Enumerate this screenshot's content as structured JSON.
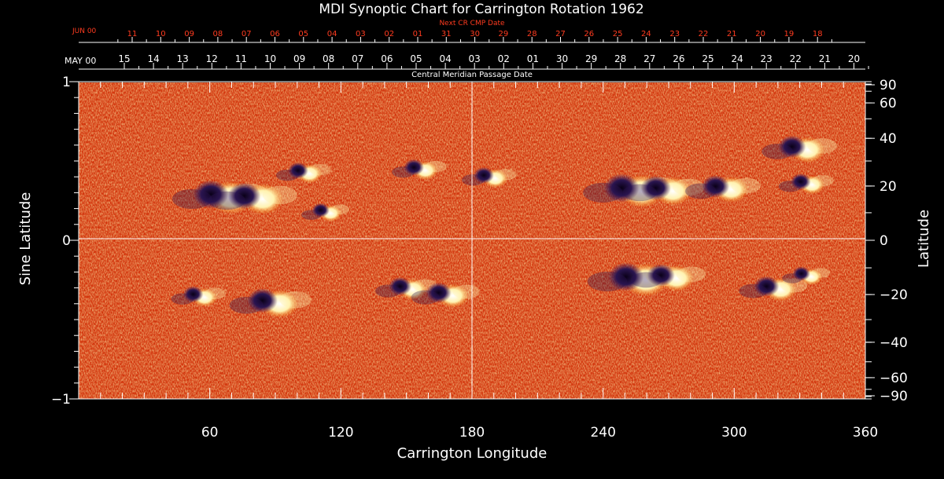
{
  "chart_data": {
    "type": "heatmap",
    "title": "MDI Synoptic Chart for Carrington Rotation 1962",
    "xlabel": "Carrington Longitude",
    "ylabel_left": "Sine Latitude",
    "ylabel_right": "Latitude",
    "xlim": [
      0,
      360
    ],
    "ylim": [
      -1,
      1
    ],
    "x_ticks": [
      "60",
      "120",
      "180",
      "240",
      "300",
      "360"
    ],
    "y_ticks_left": [
      "1",
      "0",
      "−1"
    ],
    "y_ticks_right": [
      "90",
      "60",
      "40",
      "20",
      "0",
      "−20",
      "−40",
      "−60",
      "−90"
    ],
    "y_ticks_right_values": [
      90,
      60,
      40,
      20,
      0,
      -20,
      -40,
      -60,
      -90
    ],
    "bottom_date_axis_label": "Central Meridian Passage Date",
    "bottom_date_month": "MAY 00",
    "bottom_dates": [
      "15",
      "14",
      "13",
      "12",
      "11",
      "10",
      "09",
      "08",
      "07",
      "06",
      "05",
      "04",
      "03",
      "02",
      "01",
      "30",
      "29",
      "28",
      "27",
      "26",
      "25",
      "24",
      "23",
      "22",
      "21",
      "20"
    ],
    "top_date_axis_label": "Next CR CMP Date",
    "top_date_month": "JUN 00",
    "top_dates": [
      "11",
      "10",
      "09",
      "08",
      "07",
      "06",
      "05",
      "04",
      "03",
      "02",
      "01",
      "31",
      "30",
      "29",
      "28",
      "27",
      "26",
      "25",
      "24",
      "23",
      "22",
      "21",
      "20",
      "19",
      "18"
    ],
    "active_regions": [
      {
        "lon": 65,
        "sinlat": 0.28,
        "r": 14
      },
      {
        "lon": 80,
        "sinlat": 0.27,
        "r": 13
      },
      {
        "lon": 103,
        "sinlat": 0.43,
        "r": 8
      },
      {
        "lon": 113,
        "sinlat": 0.18,
        "r": 7
      },
      {
        "lon": 156,
        "sinlat": 0.45,
        "r": 8
      },
      {
        "lon": 188,
        "sinlat": 0.4,
        "r": 8
      },
      {
        "lon": 253,
        "sinlat": 0.32,
        "r": 14
      },
      {
        "lon": 268,
        "sinlat": 0.32,
        "r": 12
      },
      {
        "lon": 295,
        "sinlat": 0.33,
        "r": 11
      },
      {
        "lon": 330,
        "sinlat": 0.58,
        "r": 11
      },
      {
        "lon": 333,
        "sinlat": 0.36,
        "r": 8
      },
      {
        "lon": 55,
        "sinlat": -0.35,
        "r": 8
      },
      {
        "lon": 88,
        "sinlat": -0.39,
        "r": 12
      },
      {
        "lon": 150,
        "sinlat": -0.3,
        "r": 9
      },
      {
        "lon": 168,
        "sinlat": -0.34,
        "r": 10
      },
      {
        "lon": 255,
        "sinlat": -0.24,
        "r": 14
      },
      {
        "lon": 270,
        "sinlat": -0.23,
        "r": 11
      },
      {
        "lon": 318,
        "sinlat": -0.3,
        "r": 10
      },
      {
        "lon": 333,
        "sinlat": -0.22,
        "r": 7
      }
    ]
  }
}
